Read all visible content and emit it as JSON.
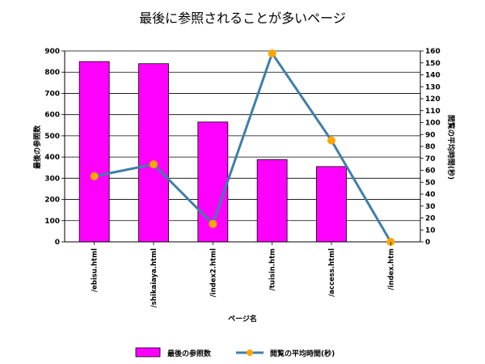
{
  "chart_data": {
    "type": "bar",
    "title": "最後に参照されることが多いページ",
    "xlabel": "ページ名",
    "ylabel": "最後の参照数",
    "y2label": "閲覧の平均時間(秒)",
    "categories": [
      "/ebisu.html",
      "/shikaiaya.html",
      "/index2.html",
      "/tuisin.htm",
      "/access.html",
      "/index.htm"
    ],
    "series": [
      {
        "name": "最後の参照数",
        "type": "bar",
        "axis": "left",
        "values": [
          850,
          840,
          565,
          388,
          355,
          0
        ]
      },
      {
        "name": "閲覧の平均時間(秒)",
        "type": "line",
        "axis": "right",
        "values": [
          55,
          65,
          15,
          158,
          85,
          0
        ]
      }
    ],
    "ylim": [
      0,
      900
    ],
    "y2lim": [
      0,
      160
    ],
    "yticks": [
      0,
      100,
      200,
      300,
      400,
      500,
      600,
      700,
      800,
      900
    ],
    "y2ticks": [
      0,
      10,
      20,
      30,
      40,
      50,
      60,
      70,
      80,
      90,
      100,
      110,
      120,
      130,
      140,
      150,
      160
    ],
    "grid": true,
    "legend": "bottom",
    "colors": {
      "bar": "#ff00ff",
      "bar_stroke": "#000000",
      "line": "#3f7fa8",
      "marker": "#ffa500",
      "grid": "#000000"
    }
  }
}
